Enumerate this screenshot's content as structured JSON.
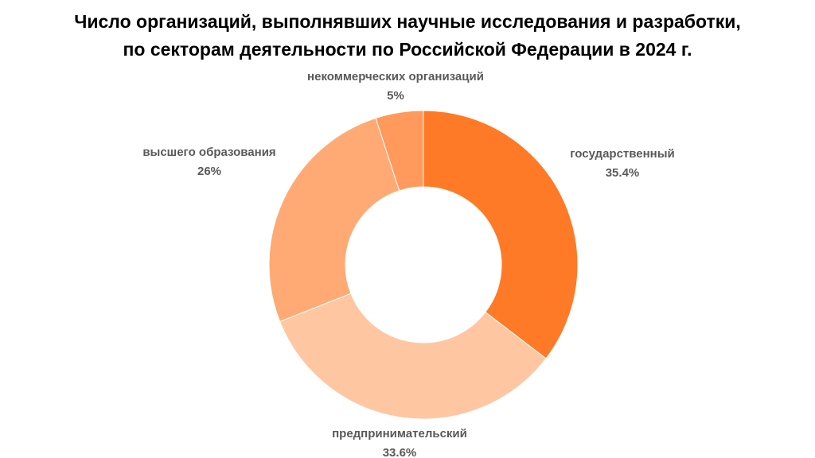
{
  "chart_data": {
    "type": "pie",
    "title_lines": [
      "Число организаций, выполнявших научные исследования и разработки,",
      "по секторам деятельности по Российской Федерации в 2024 г."
    ],
    "slices": [
      {
        "name": "государственный",
        "value": 35.4,
        "label": "35.4%",
        "color": "#FF7A26"
      },
      {
        "name": "предпринимательский",
        "value": 33.6,
        "label": "33.6%",
        "color": "#FFC6A2"
      },
      {
        "name": "высшего образования",
        "value": 26,
        "label": "26%",
        "color": "#FFAA74"
      },
      {
        "name": "некоммерческих организаций",
        "value": 5,
        "label": "5%",
        "color": "#FF9A5C"
      }
    ],
    "start_angle": "12 o'clock",
    "direction": "clockwise",
    "donut": true,
    "legend": "none"
  }
}
